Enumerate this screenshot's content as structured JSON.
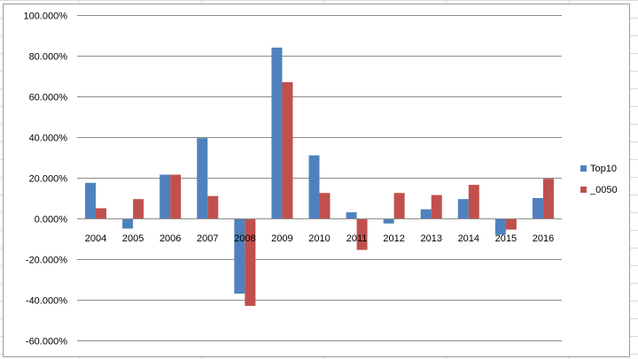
{
  "colors": {
    "sheet_grid": "#dadada",
    "chart_gridline": "#8c8c8c",
    "axis_line": "#8c8c8c",
    "series_top10": "#4f81bd",
    "series_0050": "#c0504d"
  },
  "chart_data": {
    "type": "bar",
    "title": "",
    "xlabel": "",
    "ylabel": "",
    "categories": [
      "2004",
      "2005",
      "2006",
      "2007",
      "2008",
      "2009",
      "2010",
      "2011",
      "2012",
      "2013",
      "2014",
      "2015",
      "2016"
    ],
    "series": [
      {
        "name": "Top10",
        "color": "#4f81bd",
        "values": [
          17.5,
          -5.0,
          21.5,
          39.5,
          -37.0,
          84.0,
          31.0,
          3.0,
          -2.5,
          4.5,
          9.5,
          -8.0,
          10.0
        ]
      },
      {
        "name": "_0050",
        "color": "#c0504d",
        "values": [
          5.0,
          9.5,
          21.5,
          11.0,
          -43.0,
          67.0,
          12.5,
          -15.5,
          12.5,
          11.5,
          16.5,
          -5.5,
          19.5
        ]
      }
    ],
    "ylim": [
      -60,
      100
    ],
    "y_ticks": [
      -60,
      -40,
      -20,
      0,
      20,
      40,
      60,
      80,
      100
    ],
    "y_tick_labels": [
      "-60.000%",
      "-40.000%",
      "-20.000%",
      "0.000%",
      "20.000%",
      "40.000%",
      "60.000%",
      "80.000%",
      "100.000%"
    ],
    "grid": true,
    "legend_position": "right"
  }
}
